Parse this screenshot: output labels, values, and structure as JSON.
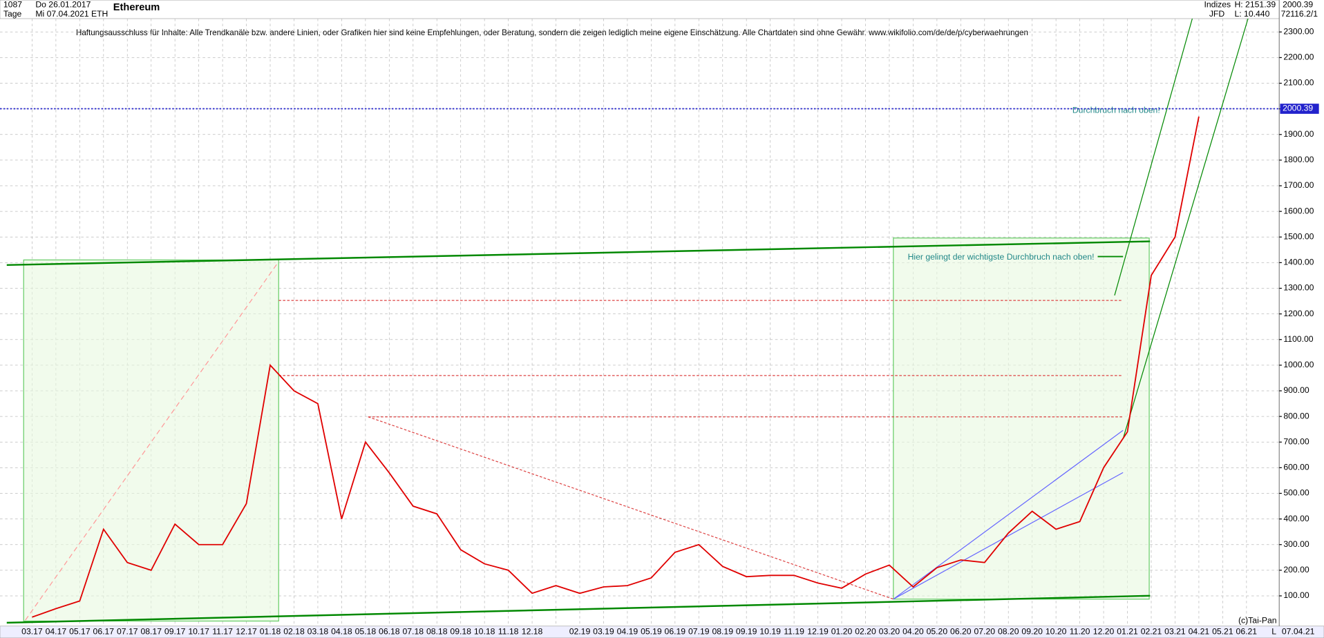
{
  "chart_data": {
    "type": "line",
    "title": "Ethereum",
    "header": {
      "bars": "1087",
      "period": "Tage",
      "date_from": "Do 26.01.2017",
      "date_to": "Mi 07.04.2021",
      "symbol": "ETH",
      "market": "Indizes",
      "source": "JFD",
      "high": "H: 2151.39",
      "low": "L: 10.440",
      "volume": "72116.2/1"
    },
    "disclaimer": "Haftungsausschluss für Inhalte: Alle Trendkanäle bzw. andere Linien, oder Grafiken hier sind keine Empfehlungen, oder Beratung, sondern die zeigen lediglich meine eigene Einschätzung. Alle Chartdaten sind ohne Gewähr.  www.wikifolio.com/de/de/p/cyberwaehrungen",
    "annotations": [
      "Durchbruch nach oben!",
      "Hier gelingt der wichtigste Durchbruch nach oben!"
    ],
    "footer": {
      "copyright": "(c)Tai-Pan",
      "date": "07.04.21",
      "scale": "L"
    },
    "last_price": {
      "value": 2000.39,
      "label": "2000.39"
    },
    "categories": [
      "03.17",
      "04.17",
      "05.17",
      "06.17",
      "07.17",
      "08.17",
      "09.17",
      "10.17",
      "11.17",
      "12.17",
      "01.18",
      "02.18",
      "03.18",
      "04.18",
      "05.18",
      "06.18",
      "07.18",
      "08.18",
      "09.18",
      "10.18",
      "11.18",
      "12.18",
      null,
      "02.19",
      "03.19",
      "04.19",
      "05.19",
      "06.19",
      "07.19",
      "08.19",
      "09.19",
      "10.19",
      "11.19",
      "12.19",
      "01.20",
      "02.20",
      "03.20",
      "04.20",
      "05.20",
      "06.20",
      "07.20",
      "08.20",
      "09.20",
      "10.20",
      "11.20",
      "12.20",
      "01.21",
      "02.21",
      "03.21",
      "04.21",
      "05.21",
      "06.21"
    ],
    "series": [
      {
        "name": "ETH",
        "color": "#e00000",
        "values": [
          17,
          50,
          80,
          360,
          230,
          200,
          380,
          300,
          300,
          460,
          1000,
          900,
          850,
          400,
          700,
          580,
          450,
          420,
          280,
          225,
          200,
          110,
          140,
          110,
          135,
          140,
          170,
          270,
          300,
          215,
          175,
          180,
          180,
          150,
          130,
          185,
          220,
          135,
          210,
          240,
          230,
          345,
          430,
          360,
          390,
          600,
          740,
          1350,
          1500,
          1970,
          null,
          null
        ]
      }
    ],
    "ylim": [
      -18,
      2352
    ],
    "yticks": [
      {
        "value": 100,
        "label": "100.00"
      },
      {
        "value": 200,
        "label": "200.00"
      },
      {
        "value": 300,
        "label": "300.00"
      },
      {
        "value": 400,
        "label": "400.00"
      },
      {
        "value": 500,
        "label": "500.00"
      },
      {
        "value": 600,
        "label": "600.00"
      },
      {
        "value": 700,
        "label": "700.00"
      },
      {
        "value": 800,
        "label": "800.00"
      },
      {
        "value": 900,
        "label": "900.00"
      },
      {
        "value": 1000,
        "label": "1000.00"
      },
      {
        "value": 1100,
        "label": "1100.00"
      },
      {
        "value": 1200,
        "label": "1200.00"
      },
      {
        "value": 1300,
        "label": "1300.00"
      },
      {
        "value": 1400,
        "label": "1400.00"
      },
      {
        "value": 1500,
        "label": "1500.00"
      },
      {
        "value": 1600,
        "label": "1600.00"
      },
      {
        "value": 1700,
        "label": "1700.00"
      },
      {
        "value": 1800,
        "label": "1800.00"
      },
      {
        "value": 1900,
        "label": "1900.00"
      },
      {
        "value": 2000,
        "label": "2000.00"
      },
      {
        "value": 2100,
        "label": "2100.00"
      },
      {
        "value": 2200,
        "label": "2200.00"
      },
      {
        "value": 2300,
        "label": "2300.00"
      }
    ],
    "grid": true
  }
}
